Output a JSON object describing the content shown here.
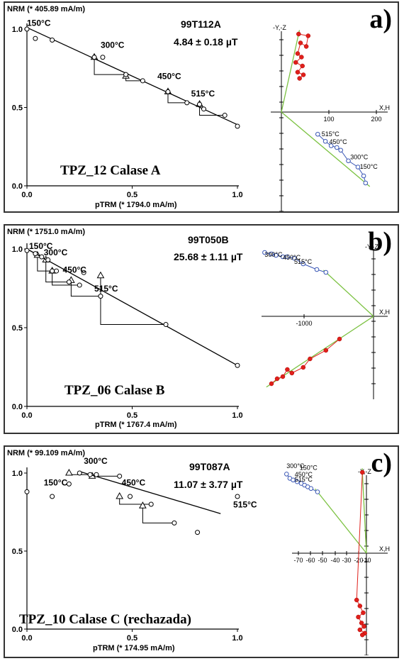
{
  "chart_data": [
    {
      "type": "scatter",
      "panel_letter": "a)",
      "sample": "99T112A",
      "paleointensity": "4.84 ± 0.18 µT",
      "title": "TPZ_12 Calase A",
      "ylabel": "NRM (* 405.89 mA/m)",
      "xlabel": "pTRM (* 1794.0 mA/m)",
      "xlim": [
        0,
        1
      ],
      "ylim": [
        0,
        1
      ],
      "x_ticks": [
        "0.0",
        "0.5",
        "1.0"
      ],
      "y_ticks": [
        "0.0",
        "0.5",
        "1.0"
      ],
      "points_x": [
        0.0,
        0.04,
        0.12,
        0.32,
        0.36,
        0.47,
        0.55,
        0.67,
        0.76,
        0.82,
        0.84,
        0.94,
        1.0
      ],
      "points_y": [
        1.0,
        0.94,
        0.93,
        0.82,
        0.82,
        0.71,
        0.67,
        0.6,
        0.53,
        0.52,
        0.49,
        0.45,
        0.38
      ],
      "checks_x": [
        0.32,
        0.47,
        0.67,
        0.82
      ],
      "checks_y": [
        0.82,
        0.7,
        0.6,
        0.52
      ],
      "fit": {
        "x": [
          0.0,
          1.0
        ],
        "y": [
          1.01,
          0.39
        ]
      },
      "temp_labels": [
        {
          "text": "150°C",
          "x": 0.0,
          "y": 1.02
        },
        {
          "text": "300°C",
          "x": 0.35,
          "y": 0.88
        },
        {
          "text": "450°C",
          "x": 0.62,
          "y": 0.68
        },
        {
          "text": "515°C",
          "x": 0.78,
          "y": 0.57
        }
      ],
      "zij": {
        "axis_labels": {
          "up": "-Y,-Z",
          "right": "X,H"
        },
        "x_ticks": [
          "100",
          "200"
        ],
        "red_x": [
          0.18,
          0.28,
          0.26,
          0.2,
          0.17,
          0.21,
          0.15,
          0.22,
          0.17,
          0.23,
          0.19
        ],
        "red_y": [
          0.88,
          0.86,
          0.74,
          0.78,
          0.66,
          0.62,
          0.56,
          0.52,
          0.45,
          0.42,
          0.38
        ],
        "blue_x": [
          0.38,
          0.46,
          0.52,
          0.58,
          0.62,
          0.7,
          0.8,
          0.86,
          0.88
        ],
        "blue_y": [
          -0.25,
          -0.33,
          -0.38,
          -0.4,
          -0.43,
          -0.55,
          -0.62,
          -0.72,
          -0.8
        ],
        "blue_labels": [
          {
            "text": "515°C",
            "x": 0.42,
            "y": -0.27
          },
          {
            "text": "450°C",
            "x": 0.5,
            "y": -0.36
          },
          {
            "text": "300°C",
            "x": 0.72,
            "y": -0.53
          },
          {
            "text": "150°C",
            "x": 0.82,
            "y": -0.64
          }
        ]
      }
    },
    {
      "type": "scatter",
      "panel_letter": "b)",
      "sample": "99T050B",
      "paleointensity": "25.68 ± 1.11 µT",
      "title": "TPZ_06 Calase B",
      "ylabel": "NRM (* 1751.0 mA/m)",
      "xlabel": "pTRM (* 1767.4 mA/m)",
      "xlim": [
        0,
        1
      ],
      "ylim": [
        0,
        1
      ],
      "x_ticks": [
        "0.0",
        "0.5",
        "1.0"
      ],
      "y_ticks": [
        "0.0",
        "0.5",
        "1.0"
      ],
      "points_x": [
        0.0,
        0.04,
        0.07,
        0.1,
        0.12,
        0.14,
        0.2,
        0.25,
        0.27,
        0.35,
        0.66,
        1.0
      ],
      "points_y": [
        0.99,
        0.97,
        0.95,
        0.93,
        0.86,
        0.86,
        0.79,
        0.77,
        0.85,
        0.7,
        0.52,
        0.26
      ],
      "checks_x": [
        0.05,
        0.09,
        0.12,
        0.21,
        0.35
      ],
      "checks_y": [
        0.96,
        0.93,
        0.86,
        0.8,
        0.83
      ],
      "fit": {
        "x": [
          0.0,
          1.0
        ],
        "y": [
          1.0,
          0.26
        ]
      },
      "temp_labels": [
        {
          "text": "150°C",
          "x": 0.01,
          "y": 1.0
        },
        {
          "text": "300°C",
          "x": 0.08,
          "y": 0.96
        },
        {
          "text": "450°C",
          "x": 0.17,
          "y": 0.85
        },
        {
          "text": "515°C",
          "x": 0.32,
          "y": 0.73
        }
      ],
      "zij": {
        "axis_labels": {
          "up": "-Y,-Z",
          "right": "X,H"
        },
        "x_ticks": [
          "-1000"
        ],
        "blue_x": [
          -0.96,
          -0.9,
          -0.86,
          -0.8,
          -0.76,
          -0.7,
          -0.62,
          -0.5,
          -0.42
        ],
        "blue_y": [
          0.9,
          0.88,
          0.86,
          0.84,
          0.84,
          0.82,
          0.74,
          0.66,
          0.62
        ],
        "red_x": [
          -0.9,
          -0.85,
          -0.8,
          -0.76,
          -0.72,
          -0.62,
          -0.56,
          -0.42,
          -0.3
        ],
        "red_y": [
          -0.95,
          -0.88,
          -0.85,
          -0.75,
          -0.8,
          -0.72,
          -0.6,
          -0.48,
          -0.32
        ],
        "blue_labels": [
          {
            "text": "300°C",
            "x": -0.96,
            "y": 0.84
          },
          {
            "text": "450°C",
            "x": -0.8,
            "y": 0.8
          },
          {
            "text": "515°C",
            "x": -0.7,
            "y": 0.74
          }
        ]
      }
    },
    {
      "type": "scatter",
      "panel_letter": "c)",
      "sample": "99T087A",
      "paleointensity": "11.07 ± 3.77 µT",
      "title": "TPZ_10 Calase C (rechazada)",
      "ylabel": "NRM (* 99.109 mA/m)",
      "xlabel": "pTRM (* 174.95 mA/m)",
      "xlim": [
        0,
        1
      ],
      "ylim": [
        0,
        1
      ],
      "x_ticks": [
        "0.0",
        "0.5",
        "1.0"
      ],
      "y_ticks": [
        "0.0",
        "0.5",
        "1.0"
      ],
      "points_x": [
        0.0,
        0.12,
        0.2,
        0.25,
        0.3,
        0.33,
        0.44,
        0.49,
        0.59,
        0.7,
        0.81,
        1.0
      ],
      "points_y": [
        0.88,
        0.85,
        0.93,
        1.0,
        0.99,
        0.99,
        0.98,
        0.85,
        0.8,
        0.68,
        0.62,
        0.85
      ],
      "checks_x": [
        0.2,
        0.31,
        0.44,
        0.55
      ],
      "checks_y": [
        1.0,
        0.98,
        0.85,
        0.79
      ],
      "fit": {
        "x": [
          0.25,
          0.92
        ],
        "y": [
          1.01,
          0.74
        ]
      },
      "temp_labels": [
        {
          "text": "300°C",
          "x": 0.27,
          "y": 1.06
        },
        {
          "text": "150°C",
          "x": 0.08,
          "y": 0.92
        },
        {
          "text": "450°C",
          "x": 0.45,
          "y": 0.92
        },
        {
          "text": "515°C",
          "x": 0.98,
          "y": 0.78
        }
      ],
      "zij": {
        "axis_labels": {
          "up": "-Y,-Z",
          "right": "X,H"
        },
        "x_ticks": [
          "-70",
          "-60",
          "-50",
          "-40",
          "-30",
          "-20",
          "-10"
        ],
        "blue_x": [
          -0.98,
          -0.94,
          -0.9,
          -0.85,
          -0.8,
          -0.76,
          -0.72,
          -0.68,
          -0.6
        ],
        "blue_y": [
          0.93,
          0.88,
          0.86,
          0.84,
          0.82,
          0.8,
          0.78,
          0.76,
          0.72
        ],
        "red_x": [
          -0.05,
          -0.12,
          -0.08,
          -0.04,
          -0.1,
          -0.06,
          -0.03,
          -0.08,
          -0.02,
          -0.05
        ],
        "red_y": [
          0.95,
          -0.55,
          -0.62,
          -0.7,
          -0.75,
          -0.82,
          -0.86,
          -0.9,
          -0.94,
          -0.96
        ],
        "blue_labels": [
          {
            "text": "300°C",
            "x": -0.98,
            "y": 1.0
          },
          {
            "text": "150°C",
            "x": -0.82,
            "y": 0.98
          },
          {
            "text": "450°C",
            "x": -0.88,
            "y": 0.9
          },
          {
            "text": "515°C",
            "x": -0.88,
            "y": 0.84
          }
        ]
      }
    }
  ]
}
